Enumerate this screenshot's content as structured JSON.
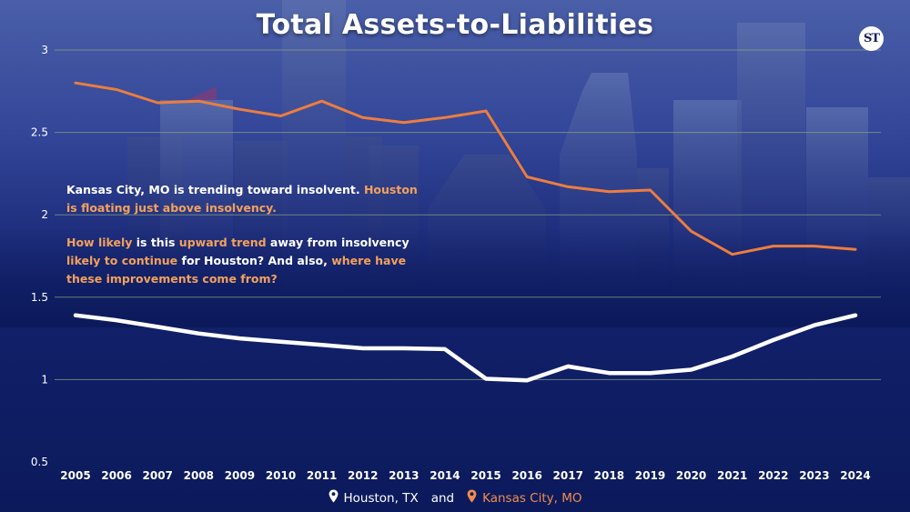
{
  "header": {
    "title": "Total Assets-to-Liabilities",
    "logo_text": "ST"
  },
  "annotation": {
    "p1": [
      {
        "text": "Kansas City, MO is trending toward insolvent. ",
        "highlight": false
      },
      {
        "text": "Houston is floating just above insolvency.",
        "highlight": true
      }
    ],
    "p2": [
      {
        "text": "How likely",
        "highlight": true
      },
      {
        "text": " is this ",
        "highlight": false
      },
      {
        "text": "upward trend",
        "highlight": true
      },
      {
        "text": " away from insolvency ",
        "highlight": false
      },
      {
        "text": "likely to continue",
        "highlight": true
      },
      {
        "text": " for Houston? And also, ",
        "highlight": false
      },
      {
        "text": "where have these improvements come from?",
        "highlight": true
      }
    ]
  },
  "legend": {
    "houston_label": "Houston, TX",
    "separator": "and",
    "kansas_label": "Kansas City, MO"
  },
  "colors": {
    "houston_line": "#ffffff",
    "kansas_line": "#ec7d3f",
    "highlight_text": "#f4a15c",
    "gridline": "#8fa87a"
  },
  "icons": {
    "legend_marker": "map-pin-icon"
  },
  "chart_data": {
    "type": "line",
    "title": "Total Assets-to-Liabilities",
    "xlabel": "",
    "ylabel": "",
    "x": [
      2005,
      2006,
      2007,
      2008,
      2009,
      2010,
      2011,
      2012,
      2013,
      2014,
      2015,
      2016,
      2017,
      2018,
      2019,
      2020,
      2021,
      2022,
      2023,
      2024
    ],
    "ylim": [
      0.5,
      3
    ],
    "yticks": [
      0.5,
      1,
      1.5,
      2,
      2.5,
      3
    ],
    "grid": true,
    "legend_position": "bottom-center",
    "series": [
      {
        "name": "Houston, TX",
        "color": "#ffffff",
        "values": [
          1.39,
          1.36,
          1.32,
          1.28,
          1.25,
          1.23,
          1.21,
          1.19,
          1.19,
          1.185,
          1.005,
          0.995,
          1.08,
          1.04,
          1.04,
          1.06,
          1.14,
          1.24,
          1.33,
          1.39
        ]
      },
      {
        "name": "Kansas City, MO",
        "color": "#ec7d3f",
        "values": [
          2.8,
          2.76,
          2.68,
          2.69,
          2.64,
          2.6,
          2.69,
          2.59,
          2.56,
          2.59,
          2.63,
          2.23,
          2.17,
          2.14,
          2.15,
          1.9,
          1.76,
          1.81,
          1.81,
          1.79
        ]
      }
    ]
  }
}
